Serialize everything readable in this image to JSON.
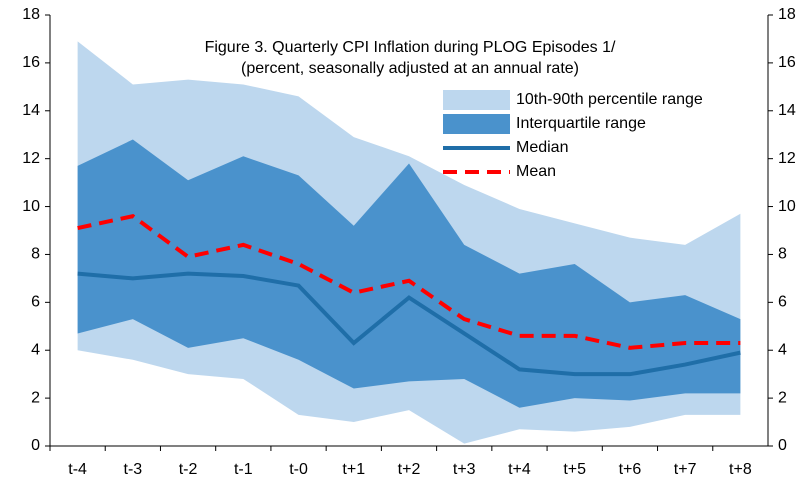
{
  "chart_data": {
    "type": "band-line",
    "title": "Figure 3. Quarterly  CPI Inflation during PLOG Episodes 1/",
    "subtitle": "(percent, seasonally adjusted at an annual rate)",
    "categories": [
      "t-4",
      "t-3",
      "t-2",
      "t-1",
      "t-0",
      "t+1",
      "t+2",
      "t+3",
      "t+4",
      "t+5",
      "t+6",
      "t+7",
      "t+8"
    ],
    "ylim": [
      0,
      18
    ],
    "yticks": [
      0,
      2,
      4,
      6,
      8,
      10,
      12,
      14,
      16,
      18
    ],
    "y2lim": [
      0,
      18
    ],
    "y2ticks": [
      0,
      2,
      4,
      6,
      8,
      10,
      12,
      14,
      16,
      18
    ],
    "grid": false,
    "series": [
      {
        "name": "10th-90th percentile range",
        "color": "#bdd7ee",
        "low": [
          4.0,
          3.6,
          3.0,
          2.8,
          1.3,
          1.0,
          1.5,
          0.1,
          0.7,
          0.6,
          0.8,
          1.3,
          1.3
        ],
        "high": [
          16.9,
          15.1,
          15.3,
          15.1,
          14.6,
          12.9,
          12.1,
          10.9,
          9.9,
          9.3,
          8.7,
          8.4,
          9.7
        ]
      },
      {
        "name": "Interquartile range",
        "color": "#4a92cc",
        "low": [
          4.7,
          5.3,
          4.1,
          4.5,
          3.6,
          2.4,
          2.7,
          2.8,
          1.6,
          2.0,
          1.9,
          2.2,
          2.2
        ],
        "high": [
          11.7,
          12.8,
          11.1,
          12.1,
          11.3,
          9.2,
          11.8,
          8.4,
          7.2,
          7.6,
          6.0,
          6.3,
          5.3
        ]
      },
      {
        "name": "Median",
        "color": "#1f6ea8",
        "style": "solid",
        "values": [
          7.2,
          7.0,
          7.2,
          7.1,
          6.7,
          4.3,
          6.2,
          4.7,
          3.2,
          3.0,
          3.0,
          3.4,
          3.9
        ]
      },
      {
        "name": "Mean",
        "color": "#ff0000",
        "style": "dashed",
        "values": [
          9.1,
          9.6,
          7.9,
          8.4,
          7.6,
          6.4,
          6.9,
          5.3,
          4.6,
          4.6,
          4.1,
          4.3,
          4.3
        ]
      }
    ]
  }
}
